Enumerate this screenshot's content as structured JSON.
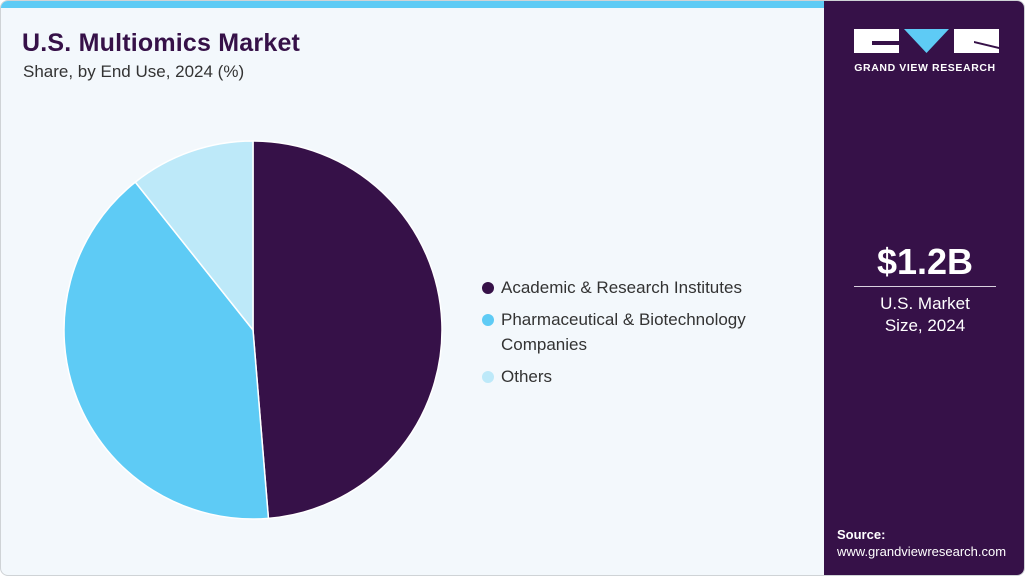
{
  "header": {
    "title": "U.S. Multiomics Market",
    "subtitle": "Share, by End Use, 2024 (%)"
  },
  "colors": {
    "accent_bar": "#5ecbf5",
    "sidebar_bg": "#361148",
    "background": "#f3f8fc",
    "academic": "#361148",
    "pharma": "#5ecbf5",
    "others": "#bde9f9"
  },
  "legend": {
    "items": [
      {
        "label": "Academic & Research Institutes",
        "color": "#361148"
      },
      {
        "label": "Pharmaceutical & Biotechnology Companies",
        "color": "#5ecbf5"
      },
      {
        "label": "Others",
        "color": "#bde9f9"
      }
    ]
  },
  "sidebar": {
    "logo_text": "GRAND VIEW RESEARCH",
    "logo_icon": "gvr-logo-icon",
    "kpi_value": "$1.2B",
    "kpi_label": "U.S. Market Size, 2024",
    "source_label": "Source:",
    "source_url": "www.grandviewresearch.com"
  },
  "chart_data": {
    "type": "pie",
    "title": "U.S. Multiomics Market",
    "subtitle": "Share, by End Use, 2024 (%)",
    "categories": [
      "Academic & Research Institutes",
      "Pharmaceutical & Biotechnology Companies",
      "Others"
    ],
    "values": [
      48.7,
      40.6,
      10.7
    ],
    "colors": [
      "#361148",
      "#5ecbf5",
      "#bde9f9"
    ],
    "start_angle": "12 o'clock, clockwise",
    "legend_position": "right",
    "data_labels": false
  }
}
